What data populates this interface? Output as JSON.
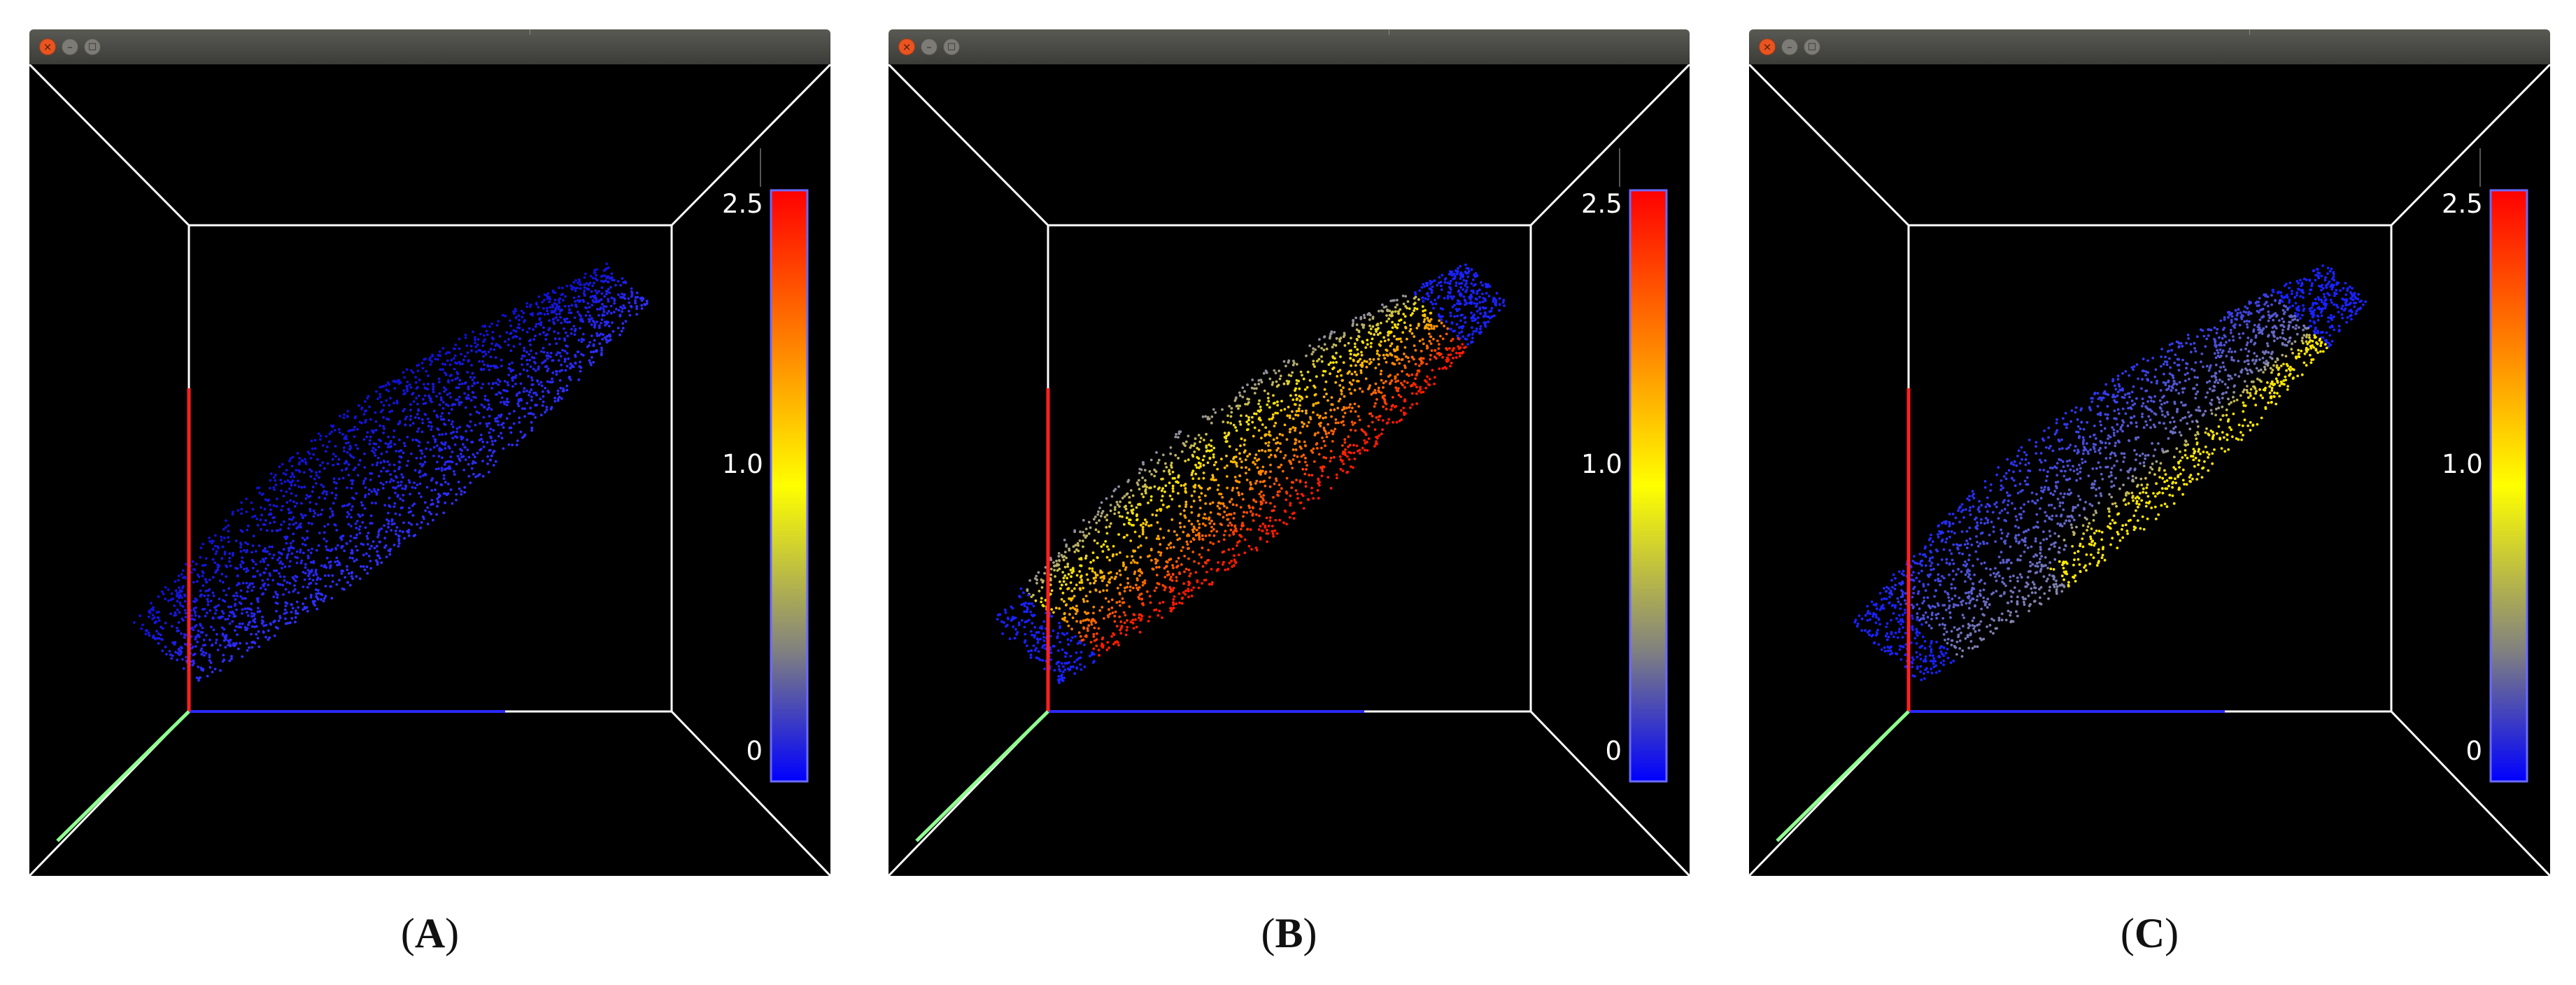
{
  "panels": [
    {
      "id": "A",
      "caption_open": "(",
      "caption_label": "A",
      "caption_close": ")",
      "point_coloring": "uniform blue",
      "colorbar": {
        "max_label": "2.5",
        "mid_label": "1.0",
        "min_label": "0"
      }
    },
    {
      "id": "B",
      "caption_open": "(",
      "caption_label": "B",
      "caption_close": ")",
      "point_coloring": "yellow-to-red gradient, blue at ends",
      "colorbar": {
        "max_label": "2.5",
        "mid_label": "1.0",
        "min_label": "0"
      }
    },
    {
      "id": "C",
      "caption_open": "(",
      "caption_label": "C",
      "caption_close": ")",
      "point_coloring": "blue-gray with yellow bottom edge",
      "colorbar": {
        "max_label": "2.5",
        "mid_label": "1.0",
        "min_label": "0"
      }
    }
  ],
  "window_buttons": {
    "close": "×",
    "minimize": "–",
    "maximize": "□"
  },
  "colors": {
    "colormap": [
      "#ff0000",
      "#ff8c00",
      "#ffff00",
      "#808080",
      "#0000ff"
    ],
    "axis_x": "#2a2aff",
    "axis_y": "#ff2020",
    "axis_z": "#90ff90",
    "frame": "#ffffff",
    "background": "#000000"
  }
}
